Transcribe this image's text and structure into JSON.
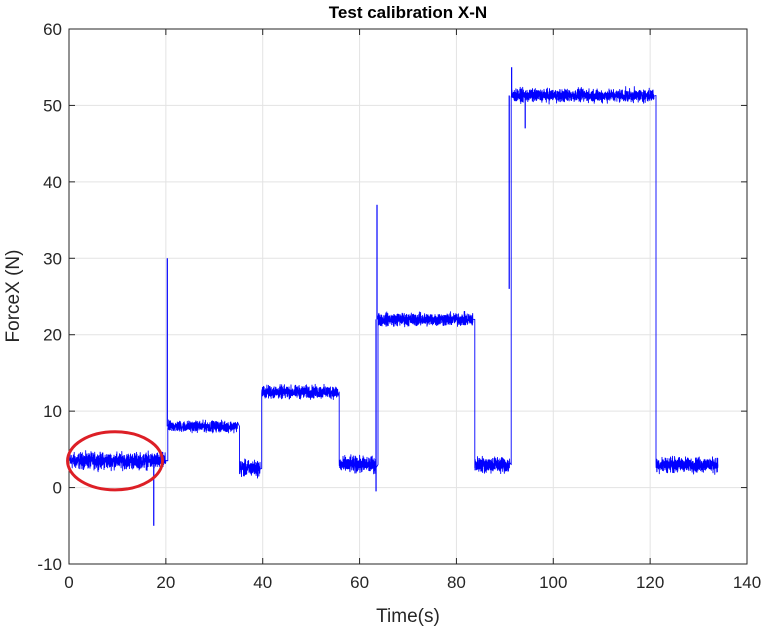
{
  "chart_data": {
    "type": "line",
    "title": "Test calibration X-N",
    "xlabel": "Time(s)",
    "ylabel": "ForceX (N)",
    "xlim": [
      0,
      140
    ],
    "ylim": [
      -10,
      60
    ],
    "xticks": [
      "0",
      "20",
      "40",
      "60",
      "80",
      "100",
      "120",
      "140"
    ],
    "yticks": [
      "-10",
      "0",
      "10",
      "20",
      "30",
      "40",
      "50",
      "60"
    ],
    "grid": true,
    "series_color": "#0000ff",
    "annotation_color": "#dd1f26",
    "segments": [
      {
        "t0": 0.2,
        "t1": 20.0,
        "level": 3.5,
        "noise": 1.5
      },
      {
        "t0": 20.4,
        "t1": 34.8,
        "level": 8.0,
        "noise": 1.0
      },
      {
        "t0": 35.2,
        "t1": 39.5,
        "level": 2.5,
        "noise": 1.5
      },
      {
        "t0": 39.8,
        "t1": 55.5,
        "level": 12.5,
        "noise": 1.2
      },
      {
        "t0": 55.8,
        "t1": 63.4,
        "level": 3.0,
        "noise": 1.5
      },
      {
        "t0": 63.8,
        "t1": 83.4,
        "level": 22.0,
        "noise": 1.2
      },
      {
        "t0": 83.8,
        "t1": 91.0,
        "level": 3.0,
        "noise": 1.5
      },
      {
        "t0": 91.3,
        "t1": 120.8,
        "level": 51.3,
        "noise": 1.2
      },
      {
        "t0": 121.2,
        "t1": 134.0,
        "level": 3.0,
        "noise": 1.4
      }
    ],
    "spikes": [
      {
        "t": 17.5,
        "value": -5.0
      },
      {
        "t": 20.3,
        "value": 30.0
      },
      {
        "t": 63.4,
        "value": -0.5
      },
      {
        "t": 63.6,
        "value": 37.0
      },
      {
        "t": 90.9,
        "value": 26.0
      },
      {
        "t": 91.4,
        "value": 55.0
      },
      {
        "t": 94.2,
        "value": 47.0
      }
    ],
    "annotation": {
      "type": "ellipse",
      "cx": 9.5,
      "cy": 3.5,
      "rx": 9.8,
      "ry": 3.8
    }
  }
}
